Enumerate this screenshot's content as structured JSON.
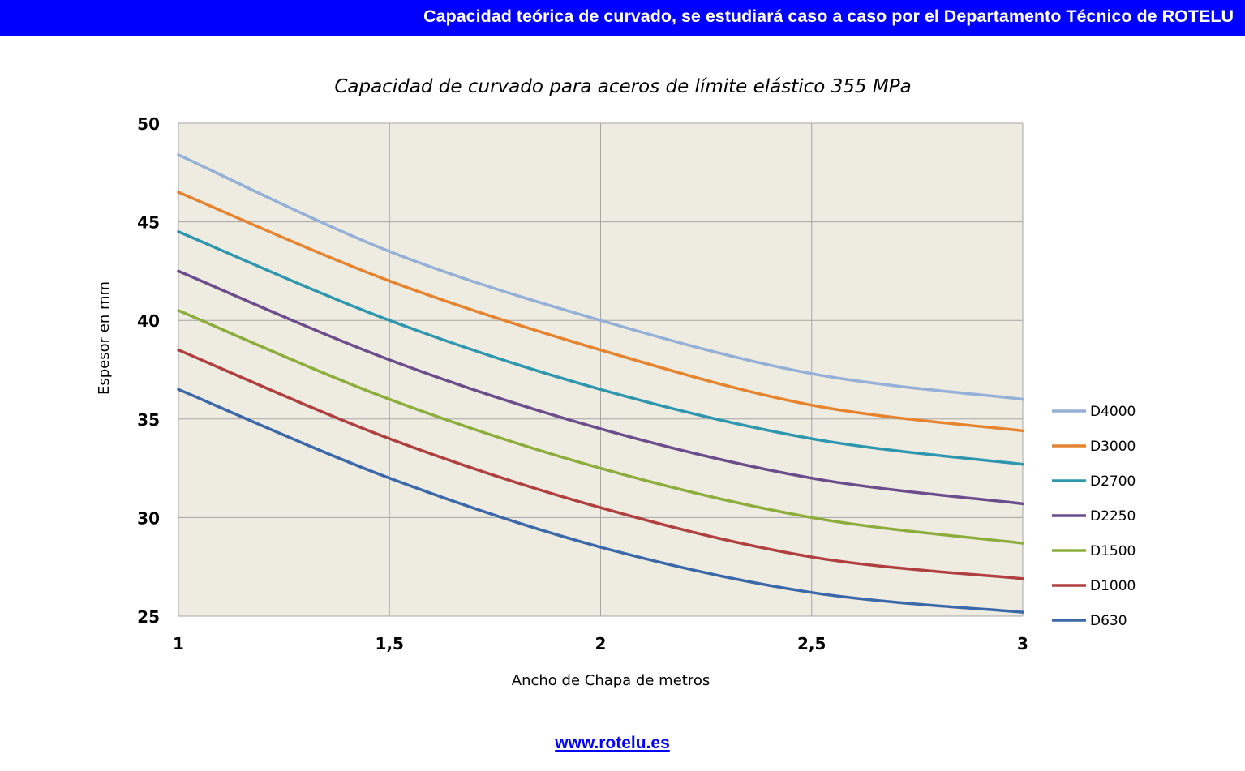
{
  "header": {
    "title": "Capacidad teórica de curvado, se estudiará caso a caso por el Departamento Técnico de ROTELU"
  },
  "footer": {
    "link_text": "www.rotelu.es"
  },
  "colors": {
    "header_bg": "#0000ff",
    "plot_bg": "#eeebe1",
    "grid": "#a6a6a6"
  },
  "chart_data": {
    "type": "line",
    "title": "Capacidad de curvado para aceros de límite elástico 355 MPa",
    "xlabel": "Ancho de Chapa de metros",
    "ylabel": "Espesor en mm",
    "xlim": [
      1,
      3
    ],
    "ylim": [
      25,
      50
    ],
    "xticks": [
      1,
      1.5,
      2,
      2.5,
      3
    ],
    "xtick_labels": [
      "1",
      "1,5",
      "2",
      "2,5",
      "3"
    ],
    "yticks": [
      25,
      30,
      35,
      40,
      45,
      50
    ],
    "ytick_labels": [
      "25",
      "30",
      "35",
      "40",
      "45",
      "50"
    ],
    "grid": true,
    "legend_position": "right",
    "x": [
      1,
      1.5,
      2,
      2.5,
      3
    ],
    "series": [
      {
        "name": "D4000",
        "color": "#95b0d6",
        "values": [
          48.4,
          43.5,
          40.0,
          37.3,
          36.0
        ]
      },
      {
        "name": "D3000",
        "color": "#e5832f",
        "values": [
          46.5,
          42.0,
          38.5,
          35.7,
          34.4
        ]
      },
      {
        "name": "D2700",
        "color": "#2e96ad",
        "values": [
          44.5,
          40.0,
          36.5,
          34.0,
          32.7
        ]
      },
      {
        "name": "D2250",
        "color": "#6b4d8b",
        "values": [
          42.5,
          38.0,
          34.5,
          32.0,
          30.7
        ]
      },
      {
        "name": "D1500",
        "color": "#8cad3c",
        "values": [
          40.5,
          36.0,
          32.5,
          30.0,
          28.7
        ]
      },
      {
        "name": "D1000",
        "color": "#b03f3f",
        "values": [
          38.5,
          34.0,
          30.5,
          28.0,
          26.9
        ]
      },
      {
        "name": "D630",
        "color": "#3b68a8",
        "values": [
          36.5,
          32.0,
          28.5,
          26.2,
          25.2
        ]
      }
    ]
  }
}
